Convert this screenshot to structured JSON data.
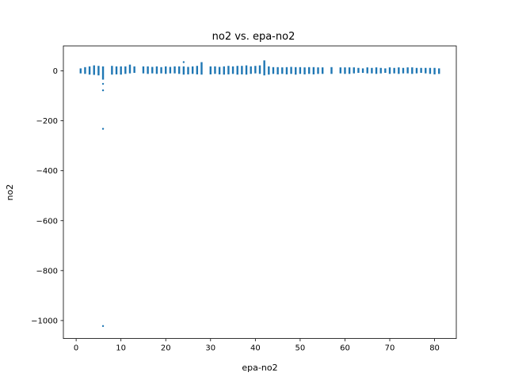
{
  "chart_data": {
    "type": "scatter",
    "title": "no2 vs. epa-no2",
    "xlabel": "epa-no2",
    "ylabel": "no2",
    "xlim": [
      -2.85,
      84.85
    ],
    "ylim": [
      -1072,
      100
    ],
    "xticks": [
      0,
      10,
      20,
      30,
      40,
      50,
      60,
      70,
      80
    ],
    "yticks": [
      0,
      -200,
      -400,
      -600,
      -800,
      -1000
    ],
    "ytick_labels": [
      "0",
      "−200",
      "−400",
      "−600",
      "−800",
      "−1000"
    ],
    "grid": false,
    "color": "#1f77b4",
    "series": [
      {
        "x_y_ranges": [
          [
            1,
            -10,
            10
          ],
          [
            2,
            -12,
            15
          ],
          [
            3,
            -15,
            18
          ],
          [
            4,
            -16,
            22
          ],
          [
            5,
            -18,
            20
          ],
          [
            6,
            -35,
            18
          ],
          [
            8,
            -15,
            20
          ],
          [
            9,
            -14,
            18
          ],
          [
            10,
            -15,
            18
          ],
          [
            11,
            -12,
            18
          ],
          [
            12,
            -10,
            25
          ],
          [
            13,
            -8,
            18
          ],
          [
            15,
            -10,
            18
          ],
          [
            16,
            -12,
            18
          ],
          [
            17,
            -10,
            16
          ],
          [
            18,
            -12,
            18
          ],
          [
            19,
            -10,
            15
          ],
          [
            20,
            -12,
            18
          ],
          [
            21,
            -10,
            16
          ],
          [
            22,
            -10,
            18
          ],
          [
            23,
            -12,
            18
          ],
          [
            24,
            -15,
            18
          ],
          [
            25,
            -14,
            16
          ],
          [
            26,
            -12,
            18
          ],
          [
            27,
            -14,
            20
          ],
          [
            28,
            -15,
            35
          ],
          [
            30,
            -14,
            18
          ],
          [
            31,
            -12,
            18
          ],
          [
            32,
            -14,
            16
          ],
          [
            33,
            -15,
            18
          ],
          [
            34,
            -14,
            20
          ],
          [
            35,
            -12,
            18
          ],
          [
            36,
            -15,
            20
          ],
          [
            37,
            -14,
            20
          ],
          [
            38,
            -15,
            22
          ],
          [
            39,
            -12,
            18
          ],
          [
            40,
            -10,
            20
          ],
          [
            41,
            -12,
            22
          ],
          [
            42,
            -18,
            42
          ],
          [
            43,
            -15,
            18
          ],
          [
            44,
            -12,
            15
          ],
          [
            45,
            -14,
            15
          ],
          [
            46,
            -12,
            14
          ],
          [
            47,
            -14,
            15
          ],
          [
            48,
            -12,
            16
          ],
          [
            49,
            -15,
            15
          ],
          [
            50,
            -12,
            15
          ],
          [
            51,
            -14,
            14
          ],
          [
            52,
            -12,
            15
          ],
          [
            53,
            -14,
            15
          ],
          [
            54,
            -12,
            14
          ],
          [
            55,
            -12,
            14
          ],
          [
            57,
            -12,
            15
          ],
          [
            59,
            -10,
            14
          ],
          [
            60,
            -12,
            14
          ],
          [
            61,
            -12,
            14
          ],
          [
            62,
            -10,
            14
          ],
          [
            63,
            -8,
            12
          ],
          [
            64,
            -8,
            10
          ],
          [
            65,
            -10,
            14
          ],
          [
            66,
            -10,
            12
          ],
          [
            67,
            -12,
            14
          ],
          [
            68,
            -10,
            12
          ],
          [
            69,
            -8,
            10
          ],
          [
            70,
            -12,
            14
          ],
          [
            71,
            -10,
            12
          ],
          [
            72,
            -12,
            14
          ],
          [
            73,
            -10,
            12
          ],
          [
            74,
            -10,
            14
          ],
          [
            75,
            -12,
            14
          ],
          [
            76,
            -10,
            12
          ],
          [
            77,
            -8,
            12
          ],
          [
            78,
            -10,
            12
          ],
          [
            79,
            -12,
            12
          ],
          [
            80,
            -14,
            12
          ],
          [
            81,
            -12,
            10
          ]
        ],
        "outliers": [
          [
            6,
            -52
          ],
          [
            6,
            -78
          ],
          [
            6,
            -232
          ],
          [
            6,
            -1022
          ],
          [
            24,
            35
          ]
        ]
      }
    ]
  }
}
